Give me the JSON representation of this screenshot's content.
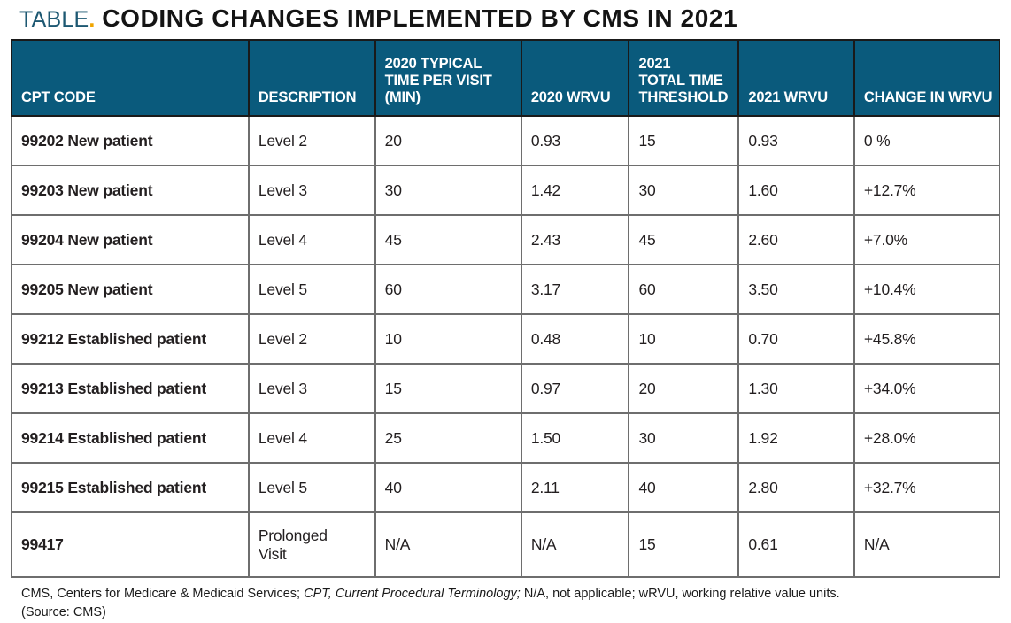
{
  "title": {
    "prefix": "TABLE",
    "dot": ".",
    "text": "CODING CHANGES IMPLEMENTED BY CMS IN 2021"
  },
  "colors": {
    "header_bg": "#0a5a7c",
    "title_prefix": "#1d5872",
    "title_dot": "#f0a500",
    "body_text": "#231f20",
    "inner_border": "#6e6e6e",
    "outer_border": "#231f20"
  },
  "table": {
    "columns": [
      {
        "id": "cpt-code",
        "label": "CPT CODE",
        "width": "24%"
      },
      {
        "id": "description",
        "label": "DESCRIPTION",
        "width": "12.8%"
      },
      {
        "id": "2020-typical-time",
        "label": "2020 TYPICAL\nTIME PER VISIT\n(MIN)",
        "width": "14.8%"
      },
      {
        "id": "2020-wrvu",
        "label": "2020 WRVU",
        "width": "10.9%"
      },
      {
        "id": "2021-total-time-threshold",
        "label": "2021\nTOTAL TIME\nTHRESHOLD",
        "width": "11.1%"
      },
      {
        "id": "2021-wrvu",
        "label": "2021 WRVU",
        "width": "11.7%"
      },
      {
        "id": "change-in-wrvu",
        "label": "CHANGE IN WRVU",
        "width": "14.7%"
      }
    ],
    "rows": [
      {
        "cells": [
          "99202 New patient",
          "Level 2",
          "20",
          "0.93",
          "15",
          "0.93",
          "0 %"
        ]
      },
      {
        "cells": [
          "99203 New patient",
          "Level 3",
          "30",
          "1.42",
          "30",
          "1.60",
          "+12.7%"
        ]
      },
      {
        "cells": [
          "99204 New patient",
          "Level 4",
          "45",
          "2.43",
          "45",
          "2.60",
          "+7.0%"
        ]
      },
      {
        "cells": [
          "99205 New patient",
          "Level 5",
          "60",
          "3.17",
          "60",
          "3.50",
          "+10.4%"
        ]
      },
      {
        "cells": [
          "99212 Established patient",
          "Level 2",
          "10",
          "0.48",
          "10",
          "0.70",
          "+45.8%"
        ]
      },
      {
        "cells": [
          "99213 Established patient",
          "Level 3",
          "15",
          "0.97",
          "20",
          "1.30",
          "+34.0%"
        ]
      },
      {
        "cells": [
          "99214 Established patient",
          "Level 4",
          "25",
          "1.50",
          "30",
          "1.92",
          "+28.0%"
        ]
      },
      {
        "cells": [
          "99215 Established patient",
          "Level 5",
          "40",
          "2.11",
          "40",
          "2.80",
          "+32.7%"
        ]
      },
      {
        "cells": [
          "99417",
          "Prolonged\nVisit",
          "N/A",
          "N/A",
          "15",
          "0.61",
          "N/A"
        ]
      }
    ]
  },
  "footnote": {
    "line1_pre": "CMS, Centers for Medicare & Medicaid Services; ",
    "line1_italic": "CPT, Current Procedural Terminology;",
    "line1_post": " N/A, not applicable; wRVU, working relative value units.",
    "line2": "(Source: CMS)"
  }
}
